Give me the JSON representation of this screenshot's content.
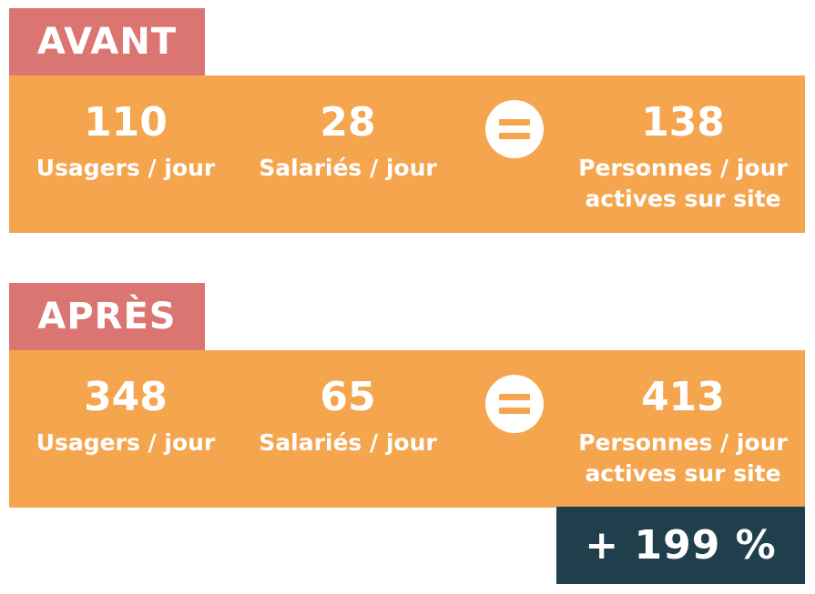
{
  "before": {
    "tag": "AVANT",
    "users": {
      "value": "110",
      "label": "Usagers / jour"
    },
    "employees": {
      "value": "28",
      "label": "Salariés / jour"
    },
    "total": {
      "value": "138",
      "label_line1": "Personnes / jour",
      "label_line2": "actives sur site"
    }
  },
  "after": {
    "tag": "APRÈS",
    "users": {
      "value": "348",
      "label": "Usagers / jour"
    },
    "employees": {
      "value": "65",
      "label": "Salariés / jour"
    },
    "total": {
      "value": "413",
      "label_line1": "Personnes / jour",
      "label_line2": "actives sur site"
    }
  },
  "change": {
    "text": "+ 199 %"
  },
  "colors": {
    "tag_bg": "#db7572",
    "band_bg": "#f5a54e",
    "result_bg": "#1f3f4d",
    "text": "#ffffff"
  },
  "icons": {
    "equals": "equals-circle-icon"
  }
}
